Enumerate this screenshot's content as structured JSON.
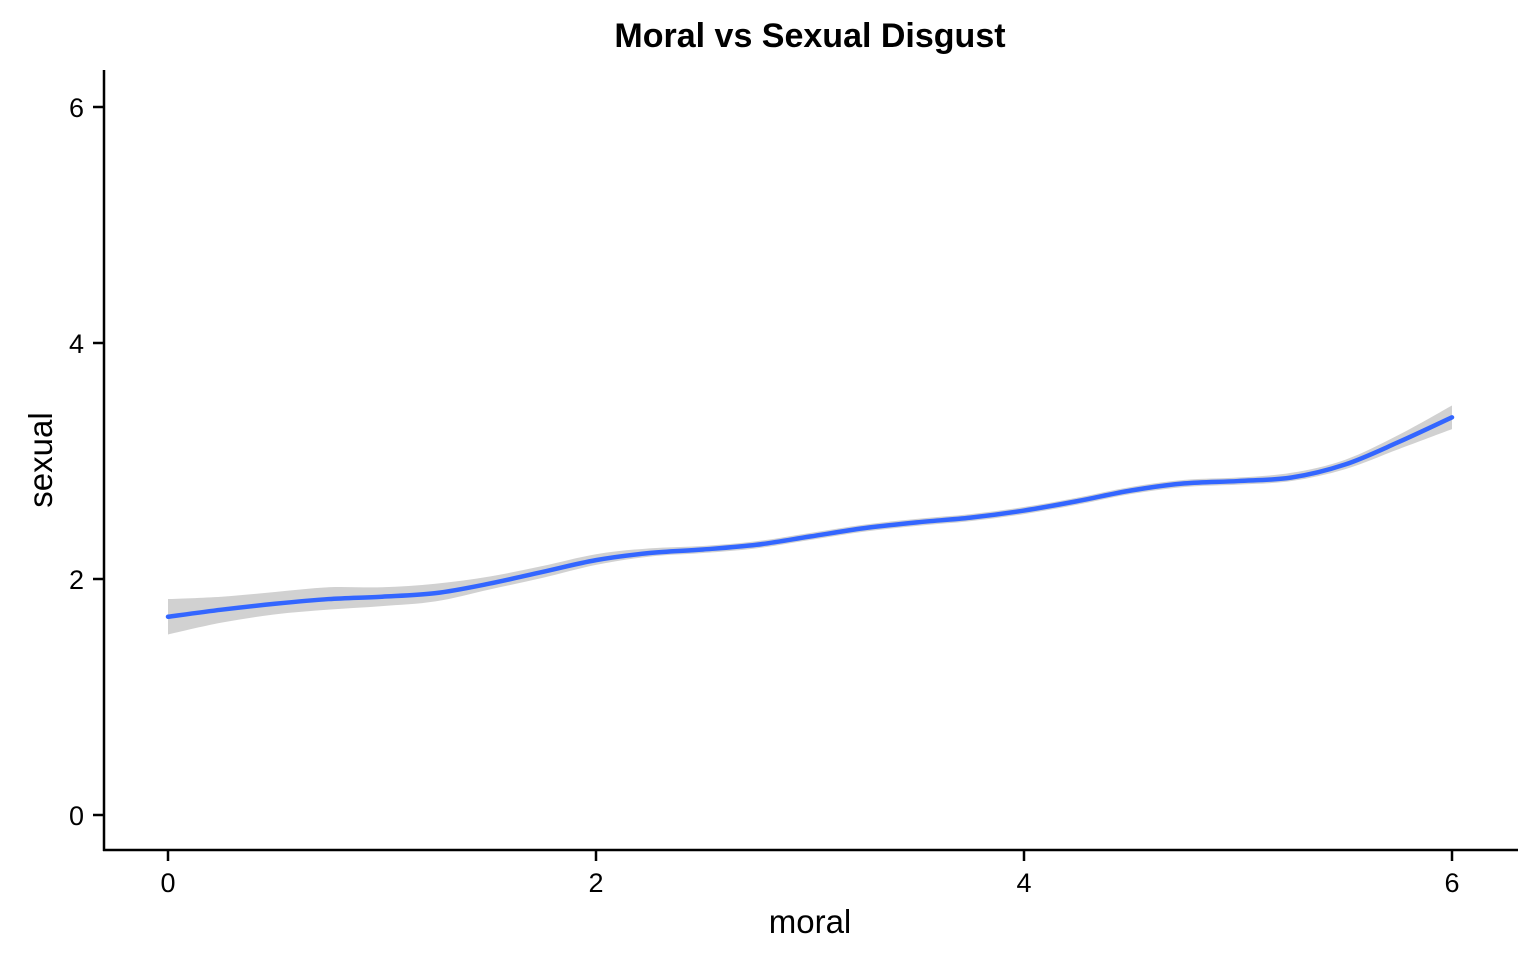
{
  "chart_data": {
    "type": "line",
    "title": "Moral vs Sexual Disgust",
    "xlabel": "moral",
    "ylabel": "sexual",
    "xlim": [
      -0.3,
      6.3
    ],
    "ylim": [
      -0.3,
      6.3
    ],
    "x_ticks": [
      0,
      2,
      4,
      6
    ],
    "y_ticks": [
      0,
      2,
      4,
      6
    ],
    "grid": false,
    "smooth_line_color": "#3366FF",
    "ribbon_color": "#BEBEBE",
    "series": [
      {
        "x": [
          0,
          0.25,
          0.5,
          0.75,
          1.0,
          1.25,
          1.5,
          1.75,
          2.0,
          2.25,
          2.5,
          2.75,
          3.0,
          3.25,
          3.5,
          3.75,
          4.0,
          4.25,
          4.5,
          4.75,
          5.0,
          5.25,
          5.5,
          5.75,
          6.0
        ],
        "y": [
          1.68,
          1.74,
          1.79,
          1.83,
          1.85,
          1.88,
          1.96,
          2.06,
          2.16,
          2.22,
          2.25,
          2.29,
          2.36,
          2.43,
          2.48,
          2.52,
          2.58,
          2.66,
          2.75,
          2.81,
          2.83,
          2.86,
          2.97,
          3.16,
          3.37
        ],
        "lower": [
          1.53,
          1.63,
          1.7,
          1.74,
          1.77,
          1.81,
          1.91,
          2.01,
          2.12,
          2.19,
          2.22,
          2.26,
          2.33,
          2.4,
          2.45,
          2.49,
          2.55,
          2.63,
          2.72,
          2.78,
          2.8,
          2.83,
          2.93,
          3.1,
          3.27
        ],
        "upper": [
          1.83,
          1.85,
          1.89,
          1.93,
          1.93,
          1.96,
          2.02,
          2.11,
          2.21,
          2.26,
          2.28,
          2.32,
          2.39,
          2.46,
          2.51,
          2.55,
          2.61,
          2.69,
          2.78,
          2.84,
          2.86,
          2.9,
          3.01,
          3.22,
          3.47
        ]
      }
    ]
  }
}
